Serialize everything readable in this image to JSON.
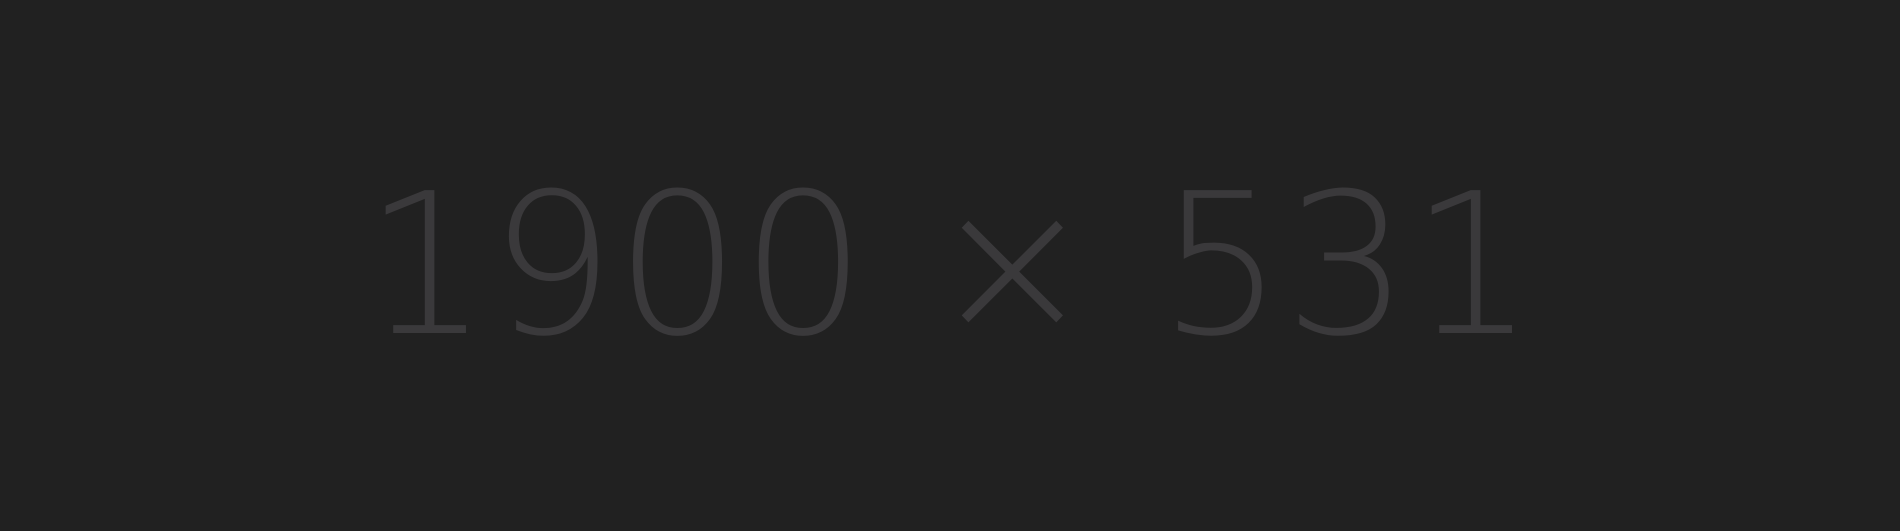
{
  "placeholder": {
    "text": "1900 × 531",
    "background_color": "#212121",
    "text_color": "#3a393b"
  }
}
